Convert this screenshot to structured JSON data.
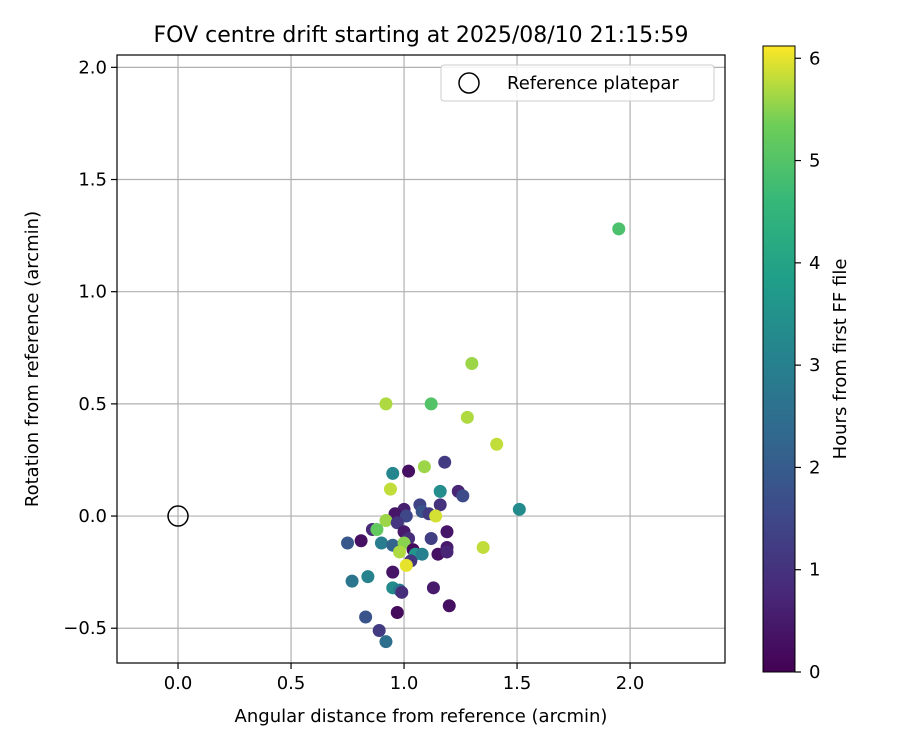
{
  "chart_data": {
    "type": "scatter",
    "title": "FOV centre drift starting at 2025/08/10 21:15:59",
    "xlabel": "Angular distance from reference (arcmin)",
    "ylabel": "Rotation from reference (arcmin)",
    "xlim": [
      -0.27,
      2.42
    ],
    "ylim": [
      -0.655,
      2.055
    ],
    "xticks": [
      0.0,
      0.5,
      1.0,
      1.5,
      2.0
    ],
    "xtick_labels": [
      "0.0",
      "0.5",
      "1.0",
      "1.5",
      "2.0"
    ],
    "yticks": [
      -0.5,
      0.0,
      0.5,
      1.0,
      1.5,
      2.0
    ],
    "ytick_labels": [
      "−0.5",
      "0.0",
      "0.5",
      "1.0",
      "1.5",
      "2.0"
    ],
    "grid": true,
    "legend": {
      "position": "top-right",
      "entries": [
        {
          "label": "Reference platepar",
          "marker": "open-circle",
          "x": 0.0,
          "y": 0.0
        }
      ]
    },
    "colorbar": {
      "label": "Hours from first FF file",
      "colormap": "viridis",
      "range": [
        0,
        6.12
      ],
      "ticks": [
        0,
        1,
        2,
        3,
        4,
        5,
        6
      ],
      "tick_labels": [
        "0",
        "1",
        "2",
        "3",
        "4",
        "5",
        "6"
      ]
    },
    "points": [
      {
        "x": 1.95,
        "y": 1.28,
        "c": 4.9
      },
      {
        "x": 1.3,
        "y": 0.68,
        "c": 5.6
      },
      {
        "x": 0.92,
        "y": 0.5,
        "c": 5.7
      },
      {
        "x": 1.12,
        "y": 0.5,
        "c": 5.0
      },
      {
        "x": 1.28,
        "y": 0.44,
        "c": 5.7
      },
      {
        "x": 1.41,
        "y": 0.32,
        "c": 5.8
      },
      {
        "x": 1.18,
        "y": 0.24,
        "c": 1.2
      },
      {
        "x": 1.09,
        "y": 0.22,
        "c": 5.6
      },
      {
        "x": 1.02,
        "y": 0.2,
        "c": 0.3
      },
      {
        "x": 0.95,
        "y": 0.19,
        "c": 3.2
      },
      {
        "x": 0.94,
        "y": 0.12,
        "c": 5.8
      },
      {
        "x": 1.16,
        "y": 0.11,
        "c": 3.4
      },
      {
        "x": 1.24,
        "y": 0.11,
        "c": 0.7
      },
      {
        "x": 1.26,
        "y": 0.09,
        "c": 1.6
      },
      {
        "x": 1.07,
        "y": 0.05,
        "c": 1.4
      },
      {
        "x": 1.16,
        "y": 0.05,
        "c": 1.0
      },
      {
        "x": 1.51,
        "y": 0.03,
        "c": 3.3
      },
      {
        "x": 1.0,
        "y": 0.03,
        "c": 0.6
      },
      {
        "x": 0.96,
        "y": 0.01,
        "c": 0.4
      },
      {
        "x": 1.08,
        "y": 0.02,
        "c": 1.8
      },
      {
        "x": 1.11,
        "y": 0.01,
        "c": 1.2
      },
      {
        "x": 1.01,
        "y": 0.0,
        "c": 1.5
      },
      {
        "x": 1.14,
        "y": 0.0,
        "c": 5.9
      },
      {
        "x": 0.92,
        "y": -0.02,
        "c": 5.6
      },
      {
        "x": 0.97,
        "y": -0.03,
        "c": 1.1
      },
      {
        "x": 0.86,
        "y": -0.06,
        "c": 0.8
      },
      {
        "x": 0.88,
        "y": -0.06,
        "c": 5.2
      },
      {
        "x": 1.0,
        "y": -0.07,
        "c": 0.5
      },
      {
        "x": 1.19,
        "y": -0.07,
        "c": 0.4
      },
      {
        "x": 1.12,
        "y": -0.1,
        "c": 1.3
      },
      {
        "x": 1.02,
        "y": -0.1,
        "c": 0.9
      },
      {
        "x": 0.75,
        "y": -0.12,
        "c": 1.9
      },
      {
        "x": 0.81,
        "y": -0.11,
        "c": 0.3
      },
      {
        "x": 0.9,
        "y": -0.12,
        "c": 2.9
      },
      {
        "x": 0.95,
        "y": -0.13,
        "c": 2.2
      },
      {
        "x": 1.0,
        "y": -0.12,
        "c": 5.5
      },
      {
        "x": 1.04,
        "y": -0.15,
        "c": 0.2
      },
      {
        "x": 1.19,
        "y": -0.14,
        "c": 0.5
      },
      {
        "x": 0.98,
        "y": -0.16,
        "c": 5.7
      },
      {
        "x": 1.05,
        "y": -0.17,
        "c": 3.6
      },
      {
        "x": 1.08,
        "y": -0.17,
        "c": 3.0
      },
      {
        "x": 1.15,
        "y": -0.17,
        "c": 0.3
      },
      {
        "x": 1.19,
        "y": -0.16,
        "c": 0.7
      },
      {
        "x": 1.35,
        "y": -0.14,
        "c": 5.8
      },
      {
        "x": 1.03,
        "y": -0.2,
        "c": 1.1
      },
      {
        "x": 1.01,
        "y": -0.22,
        "c": 6.0
      },
      {
        "x": 0.95,
        "y": -0.25,
        "c": 0.4
      },
      {
        "x": 0.77,
        "y": -0.29,
        "c": 2.7
      },
      {
        "x": 0.84,
        "y": -0.27,
        "c": 3.1
      },
      {
        "x": 0.95,
        "y": -0.32,
        "c": 3.3
      },
      {
        "x": 0.98,
        "y": -0.33,
        "c": 2.8
      },
      {
        "x": 0.99,
        "y": -0.34,
        "c": 0.9
      },
      {
        "x": 1.13,
        "y": -0.32,
        "c": 0.5
      },
      {
        "x": 1.2,
        "y": -0.4,
        "c": 0.3
      },
      {
        "x": 0.97,
        "y": -0.43,
        "c": 0.2
      },
      {
        "x": 0.83,
        "y": -0.45,
        "c": 1.8
      },
      {
        "x": 0.89,
        "y": -0.51,
        "c": 1.2
      },
      {
        "x": 0.92,
        "y": -0.56,
        "c": 2.5
      }
    ]
  }
}
